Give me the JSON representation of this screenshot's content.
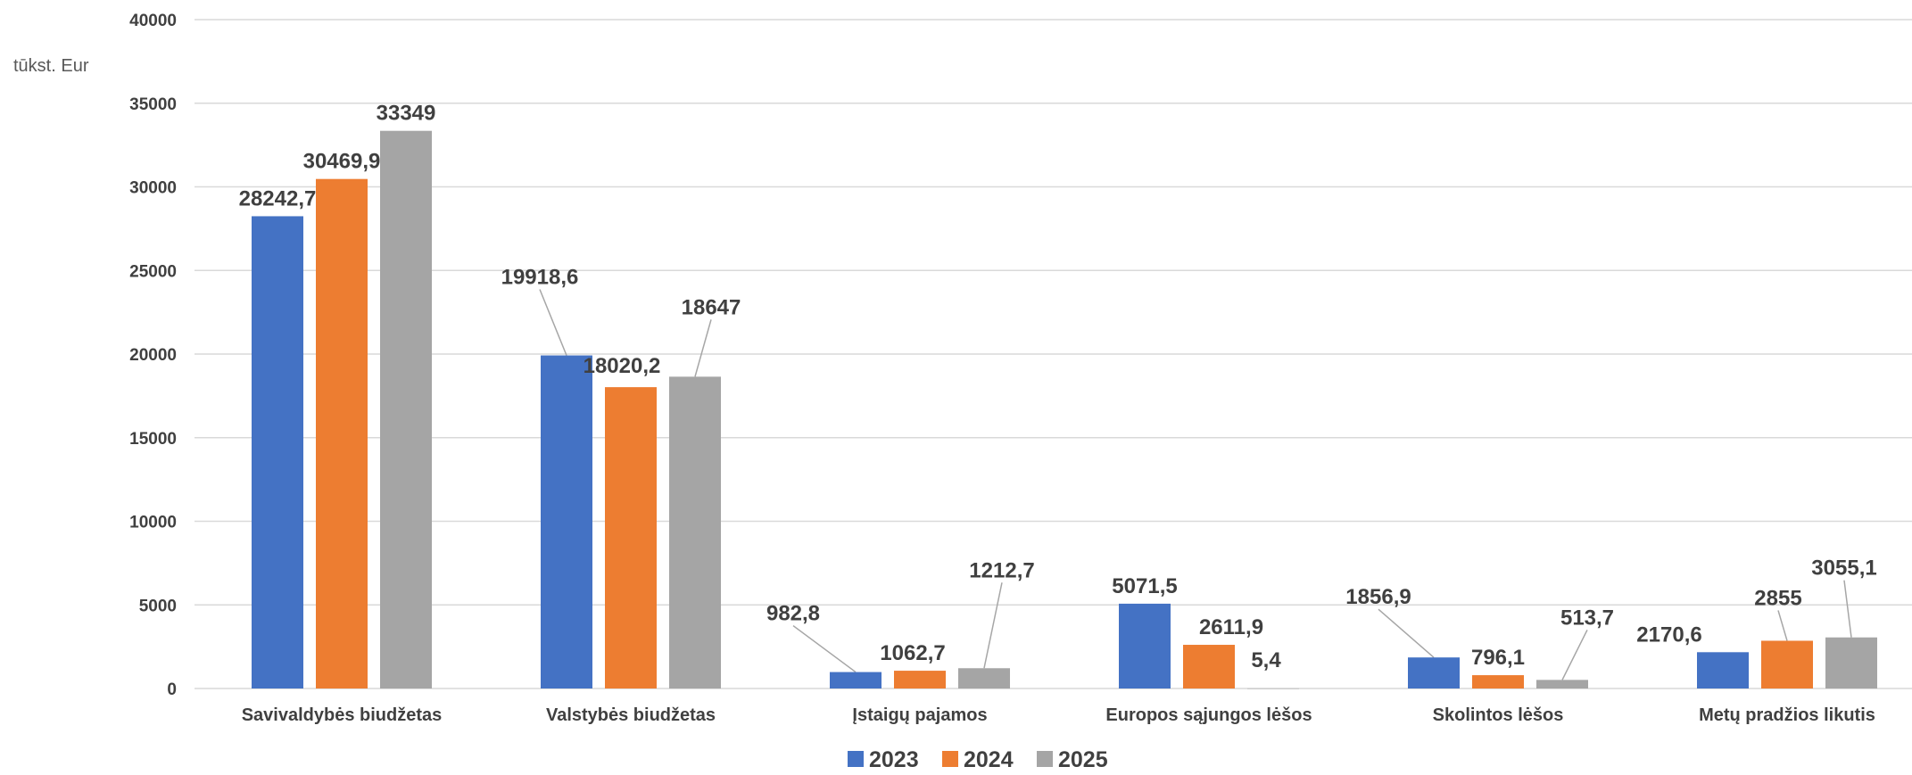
{
  "chart_data": {
    "type": "bar",
    "unit_label": "tūkst. Eur",
    "categories": [
      "Savivaldybės biudžetas",
      "Valstybės biudžetas",
      "Įstaigų pajamos",
      "Europos sąjungos lėšos",
      "Skolintos lėšos",
      "Metų pradžios likutis"
    ],
    "series": [
      {
        "name": "2023",
        "color": "#4472c4",
        "values": [
          28242.7,
          19918.6,
          982.8,
          5071.5,
          1856.9,
          2170.6
        ],
        "labels": [
          "28242,7",
          "19918,6",
          "982,8",
          "5071,5",
          "1856,9",
          "2170,6"
        ]
      },
      {
        "name": "2024",
        "color": "#ed7d31",
        "values": [
          30469.9,
          18020.2,
          1062.7,
          2611.9,
          796.1,
          2855
        ],
        "labels": [
          "30469,9",
          "18020,2",
          "1062,7",
          "2611,9",
          "796,1",
          "2855"
        ]
      },
      {
        "name": "2025",
        "color": "#a5a5a5",
        "values": [
          33349,
          18647,
          1212.7,
          5.4,
          513.7,
          3055.1
        ],
        "labels": [
          "33349",
          "18647",
          "1212,7",
          "5,4",
          "513,7",
          "3055,1"
        ]
      }
    ],
    "ylim": [
      0,
      40000
    ],
    "yticks": [
      0,
      5000,
      10000,
      15000,
      20000,
      25000,
      30000,
      35000,
      40000
    ],
    "grid": true,
    "legend_position": "bottom"
  }
}
